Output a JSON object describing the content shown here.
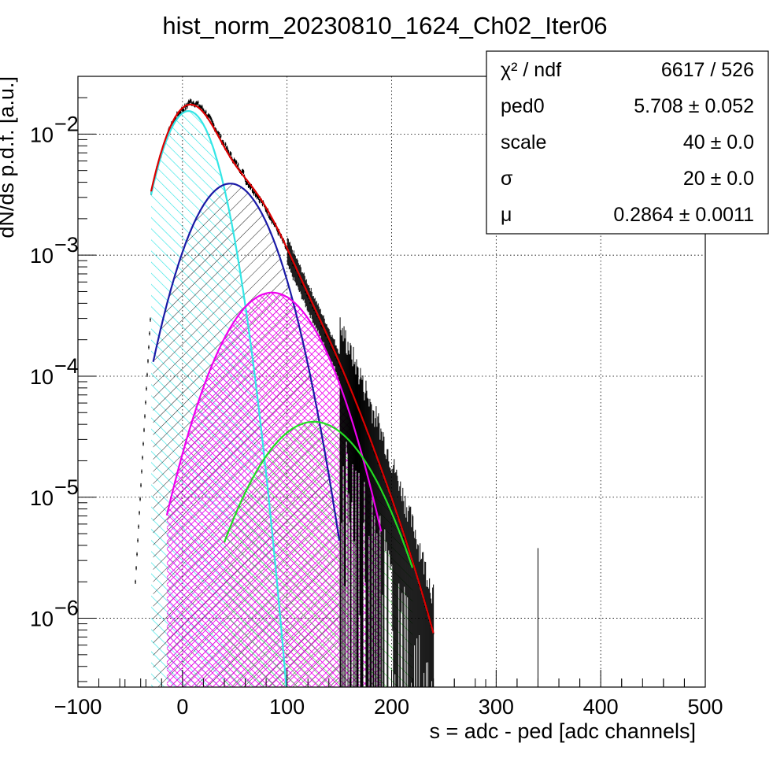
{
  "chart_data": {
    "type": "histogram-fit",
    "title": "hist_norm_20230810_1624_Ch02_Iter06",
    "xlabel": "s = adc - ped [adc channels]",
    "ylabel": "dN/ds p.d.f. [a.u.]",
    "xlim": [
      -100,
      500
    ],
    "ylim": [
      2.7e-07,
      0.03
    ],
    "yscale": "log",
    "grid": true,
    "x_ticks": [
      -100,
      0,
      100,
      200,
      300,
      400,
      500
    ],
    "x_tick_labels": [
      "−100",
      "0",
      "100",
      "200",
      "300",
      "400",
      "500"
    ],
    "y_ticks": [
      {
        "value": 0.01,
        "base": "10",
        "exp": "−2"
      },
      {
        "value": 0.001,
        "base": "10",
        "exp": "−3"
      },
      {
        "value": 0.0001,
        "base": "10",
        "exp": "−4"
      },
      {
        "value": 1e-05,
        "base": "10",
        "exp": "−5"
      },
      {
        "value": 1e-06,
        "base": "10",
        "exp": "−6"
      }
    ],
    "stats_box": [
      {
        "label": "χ² / ndf",
        "value": "6617 / 526"
      },
      {
        "label": "ped0",
        "value": "5.708 ± 0.052"
      },
      {
        "label": "scale",
        "value": "40 ± 0.0"
      },
      {
        "label": "σ",
        "value": "20 ± 0.0"
      },
      {
        "label": "μ",
        "value": "0.2864 ± 0.0011"
      }
    ],
    "fit_components": [
      {
        "color": "#33e6e6",
        "mean": 5.7,
        "sigma": 20,
        "peak": 0.0155,
        "range": [
          -30,
          100
        ],
        "hatch": "cyan"
      },
      {
        "color": "#1a1aa6",
        "mean": 45.7,
        "sigma": 28.3,
        "peak": 0.0039,
        "range": [
          -28,
          150
        ],
        "hatch": "black"
      },
      {
        "color": "#ee00ee",
        "mean": 85.7,
        "sigma": 34.6,
        "peak": 0.00049,
        "range": [
          -15,
          190
        ],
        "hatch": "magenta"
      },
      {
        "color": "#22dd22",
        "mean": 125.7,
        "sigma": 40.0,
        "peak": 4.2e-05,
        "range": [
          40,
          220
        ],
        "hatch": "green"
      }
    ],
    "total_fit": {
      "color": "#dd0000",
      "range": [
        -30,
        240
      ]
    },
    "histogram": {
      "color": "#000000",
      "x_range": [
        -45,
        340
      ]
    }
  }
}
